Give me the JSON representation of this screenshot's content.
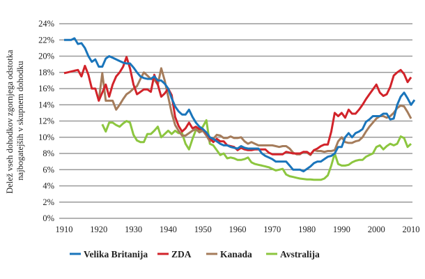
{
  "chart_data": {
    "type": "line",
    "title": "",
    "xlabel": "",
    "ylabel_lines": [
      "Delež vseh dohodkov zgornjega odstotka",
      "najbogatejših v skupnem dohodku"
    ],
    "xlim": [
      1910,
      2010
    ],
    "ylim": [
      0,
      24
    ],
    "x_ticks": [
      "1910",
      "1920",
      "1930",
      "1940",
      "1950",
      "1960",
      "1970",
      "1980",
      "1990",
      "2000",
      "2010"
    ],
    "y_ticks": [
      "0%",
      "2%",
      "4%",
      "6%",
      "8%",
      "10%",
      "12%",
      "14%",
      "16%",
      "18%",
      "20%",
      "22%",
      "24%"
    ],
    "grid": "horizontal",
    "legend_position": "bottom",
    "series": [
      {
        "name": "Velika Britanija",
        "color": "#1a75bb",
        "start": 1910,
        "values": [
          22,
          22,
          22,
          22.2,
          21.5,
          21.6,
          21,
          20,
          19.3,
          19.6,
          18.7,
          18.7,
          19.7,
          20,
          19.8,
          19.6,
          19.4,
          19.2,
          19.1,
          19.1,
          18.6,
          18,
          17.5,
          17.3,
          17.2,
          17.2,
          17.5,
          17,
          17,
          16.6,
          16,
          14.8,
          13.8,
          13.2,
          12.8,
          12.8,
          13.4,
          12.5,
          11.8,
          11.3,
          11,
          10.6,
          10,
          9.8,
          9.5,
          9.2,
          9,
          9,
          8.8,
          8.7,
          8.6,
          8.9,
          8.7,
          8.6,
          8.6,
          8.6,
          8.6,
          8,
          7.7,
          7.5,
          7.3,
          7,
          7,
          7,
          7,
          6.5,
          6,
          6,
          6,
          5.8,
          6.1,
          6.4,
          6.8,
          7,
          7,
          7.3,
          7.6,
          7.7,
          8,
          8.8,
          8.8,
          10,
          10.5,
          10,
          10.5,
          10.7,
          11,
          11.9,
          12.2,
          12.6,
          12.6,
          12.6,
          12.9,
          12.9,
          12.2,
          12.3,
          14,
          15,
          15.5,
          14.8,
          14,
          14.6
        ]
      },
      {
        "name": "ZDA",
        "color": "#d2232a",
        "start": 1910,
        "values": [
          17.9,
          18,
          18.1,
          18.2,
          18.3,
          17.5,
          18.8,
          17.7,
          16,
          16,
          14.5,
          15.5,
          16.5,
          15,
          16.5,
          17.5,
          18,
          18.7,
          19.9,
          18.5,
          16.5,
          15.3,
          15.6,
          15.9,
          15.9,
          15.6,
          17.7,
          16.5,
          15,
          15.4,
          16,
          15.2,
          12.5,
          11.4,
          10.7,
          11.1,
          11.8,
          11.1,
          11.3,
          11,
          11,
          10.5,
          9.9,
          9.4,
          9.8,
          9.5,
          9.5,
          9,
          8.9,
          8.8,
          8.4,
          8.7,
          8.5,
          8.4,
          8.4,
          8.5,
          8.5,
          8.5,
          8.5,
          8.1,
          7.9,
          7.9,
          7.9,
          7.9,
          8.2,
          8.1,
          8,
          8,
          8,
          8.2,
          8.2,
          7.9,
          8.4,
          8.6,
          8.9,
          9.1,
          9.1,
          10.7,
          13,
          12.6,
          13,
          12.4,
          13.4,
          12.9,
          12.9,
          13.4,
          14,
          14.7,
          15.3,
          15.9,
          16.5,
          15.5,
          15.1,
          15.3,
          16.2,
          17.6,
          18,
          18.3,
          17.8,
          16.8,
          17.4
        ]
      },
      {
        "name": "Kanada",
        "color": "#a57c5b",
        "start": 1920,
        "values": [
          14.5,
          17.9,
          14.5,
          14.5,
          14.5,
          13.4,
          14,
          14.7,
          15.3,
          15.6,
          16,
          16.3,
          17.2,
          18,
          17.6,
          17.2,
          17.1,
          16.5,
          18.5,
          17,
          15,
          13,
          11.5,
          10.8,
          10.2,
          10.2,
          10.5,
          10.8,
          11,
          10.6,
          10.8,
          10.2,
          9.5,
          9.8,
          10.3,
          10.2,
          9.9,
          9.9,
          10.1,
          9.9,
          9.9,
          10,
          9.5,
          9.2,
          9.4,
          9.2,
          9,
          9,
          9,
          9,
          9,
          8.9,
          8.8,
          8.9,
          8.9,
          8.6,
          8.1,
          7.9,
          7.9,
          8.2,
          8.1,
          7.8,
          8.4,
          8.3,
          8.3,
          8.2,
          8.3,
          8.3,
          8.4,
          9.5,
          10,
          9.4,
          9.3,
          9.3,
          9.5,
          9.6,
          10,
          10.7,
          11.3,
          11.8,
          12.3,
          12.6,
          12.6,
          12.4,
          12.6,
          13,
          13.6,
          13.9,
          13.8,
          13.1,
          12.3
        ]
      },
      {
        "name": "Avstralija",
        "color": "#8cc63f",
        "start": 1921,
        "values": [
          11.6,
          10.7,
          11.8,
          11.8,
          11.5,
          11.3,
          11.7,
          12,
          11.8,
          10.3,
          9.6,
          9.4,
          9.4,
          10.4,
          10.4,
          10.8,
          11.3,
          10,
          10.4,
          10.8,
          10.4,
          10.8,
          10.5,
          10.5,
          9.2,
          8.5,
          9.8,
          10.9,
          10.8,
          11.3,
          12.1,
          9.2,
          9,
          8.4,
          7.8,
          8,
          7.4,
          7.5,
          7.4,
          7.2,
          7.2,
          7.3,
          7.5,
          6.9,
          6.7,
          6.6,
          6.5,
          6.4,
          6.3,
          6.1,
          5.9,
          6,
          6.1,
          5.4,
          5.2,
          5.1,
          5,
          4.9,
          4.85,
          4.8,
          4.8,
          4.75,
          4.75,
          4.75,
          4.9,
          5.3,
          6.5,
          8,
          6.7,
          6.5,
          6.5,
          6.6,
          6.9,
          7.1,
          7.2,
          7.2,
          7.6,
          7.8,
          8,
          8.8,
          9,
          8.5,
          8.9,
          9.2,
          9,
          9.2,
          10.1,
          9.9,
          8.8,
          9.2
        ]
      }
    ]
  }
}
